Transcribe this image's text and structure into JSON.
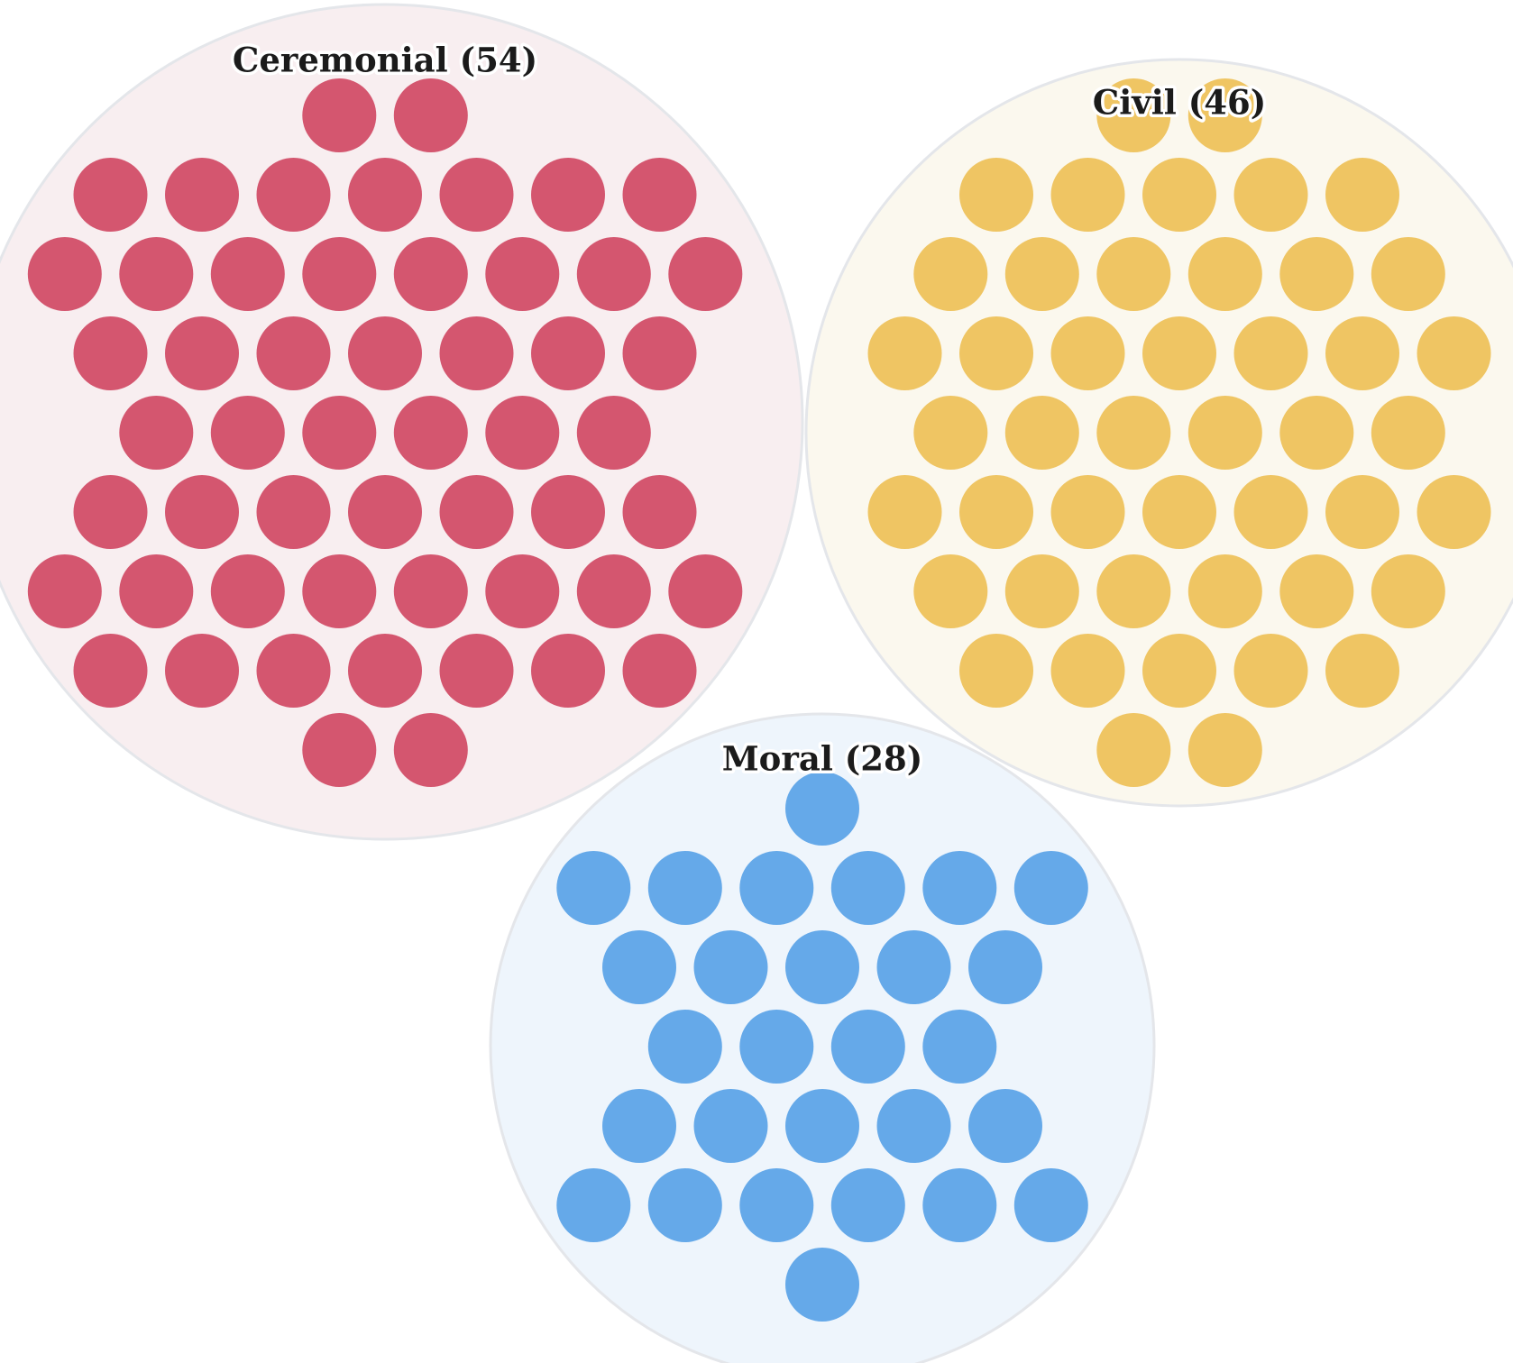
{
  "chart_data": {
    "type": "bubble-cluster",
    "title": "",
    "groups": [
      {
        "name": "Ceremonial",
        "count": 54,
        "label": "Ceremonial (54)",
        "color": "#D4566F",
        "background": "#F8EEF0",
        "row_counts": [
          2,
          7,
          8,
          7,
          6,
          7,
          8,
          7,
          2
        ]
      },
      {
        "name": "Civil",
        "count": 46,
        "label": "Civil (46)",
        "color": "#EFC563",
        "background": "#FBF8EE",
        "row_counts": [
          2,
          5,
          6,
          7,
          6,
          7,
          6,
          5,
          2
        ]
      },
      {
        "name": "Moral",
        "count": 28,
        "label": "Moral (28)",
        "color": "#65A9E9",
        "background": "#EEF5FC",
        "row_counts": [
          1,
          6,
          5,
          4,
          5,
          6,
          1
        ]
      }
    ]
  }
}
